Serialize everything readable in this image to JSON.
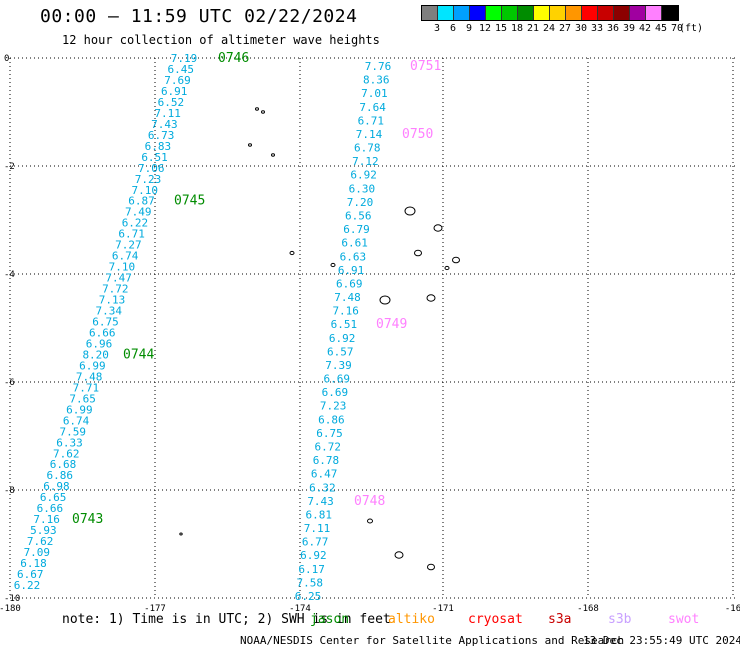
{
  "header": {
    "title": "00:00 — 11:59 UTC 02/22/2024",
    "subtitle": "12 hour collection of altimeter wave heights"
  },
  "legend": {
    "units": "(ft)",
    "entries": [
      {
        "color": "#7f7f7f",
        "label": "3"
      },
      {
        "color": "#00e5ff",
        "label": "6"
      },
      {
        "color": "#00a0ff",
        "label": "9"
      },
      {
        "color": "#0000ff",
        "label": "12"
      },
      {
        "color": "#00ff00",
        "label": "15"
      },
      {
        "color": "#00c800",
        "label": "18"
      },
      {
        "color": "#008c00",
        "label": "21"
      },
      {
        "color": "#ffff00",
        "label": "24"
      },
      {
        "color": "#ffd200",
        "label": "27"
      },
      {
        "color": "#ff9600",
        "label": "30"
      },
      {
        "color": "#ff0000",
        "label": "33"
      },
      {
        "color": "#c80000",
        "label": "36"
      },
      {
        "color": "#8c0000",
        "label": "39"
      },
      {
        "color": "#a000a0",
        "label": "42"
      },
      {
        "color": "#ff80ff",
        "label": "45"
      },
      {
        "color": "#000000",
        "label": "70"
      }
    ]
  },
  "map": {
    "lon_ticks": [
      "-180",
      "-177",
      "-174",
      "-171",
      "-168",
      "-16"
    ],
    "lat_ticks": [
      "0",
      "-2",
      "-4",
      "-6",
      "-8",
      "-10"
    ],
    "colors": {
      "wave_value": "#00aadd",
      "jason_time": "#008c00",
      "sentinel_time": "#ff80ff"
    },
    "tracks": [
      {
        "values": [
          "7.19",
          "6.45",
          "7.69",
          "6.91",
          "6.52",
          "7.11",
          "7.43",
          "6.73",
          "6.83",
          "6.51",
          "7.06",
          "7.23",
          "7.10",
          "6.87",
          "7.49",
          "6.22",
          "6.71",
          "7.27",
          "6.74",
          "7.10",
          "7.47",
          "7.72",
          "7.13",
          "7.34",
          "6.75",
          "6.66",
          "6.96",
          "8.20",
          "6.99",
          "7.48",
          "7.71",
          "7.65",
          "6.99",
          "6.74",
          "7.59",
          "6.33",
          "7.62",
          "6.68",
          "6.86",
          "6.98",
          "6.65",
          "6.66",
          "7.16",
          "5.93",
          "7.62",
          "7.09",
          "6.18",
          "6.67",
          "6.22"
        ],
        "times": [
          "0746",
          "0745",
          "0744",
          "0743"
        ]
      },
      {
        "values": [
          "7.76",
          "8.36",
          "7.01",
          "7.64",
          "6.71",
          "7.14",
          "6.78",
          "7.12",
          "6.92",
          "6.30",
          "7.20",
          "6.56",
          "6.79",
          "6.61",
          "6.63",
          "6.91",
          "6.69",
          "7.48",
          "7.16",
          "6.51",
          "6.92",
          "6.57",
          "7.39",
          "6.69",
          "6.69",
          "7.23",
          "6.86",
          "6.75",
          "6.72",
          "6.78",
          "6.47",
          "6.32",
          "7.43",
          "6.81",
          "7.11",
          "6.77",
          "6.92",
          "6.17",
          "7.58",
          "6.25"
        ],
        "times": [
          "0751",
          "0750",
          "0749",
          "0748"
        ]
      }
    ]
  },
  "footer": {
    "note": "note:  1) Time is in UTC; 2) SWH is in feet",
    "missions": [
      {
        "name": "jason",
        "color": "#008c00"
      },
      {
        "name": "altiko",
        "color": "#ff9600"
      },
      {
        "name": "cryosat",
        "color": "#ff0000"
      },
      {
        "name": "s3a",
        "color": "#c80000"
      },
      {
        "name": "s3b",
        "color": "#c8a0ff"
      },
      {
        "name": "swot",
        "color": "#ff80ff"
      }
    ],
    "credit": "NOAA/NESDIS Center for Satellite Applications and Research",
    "timestamp": "13 Dec 23:55:49 UTC 2024"
  }
}
